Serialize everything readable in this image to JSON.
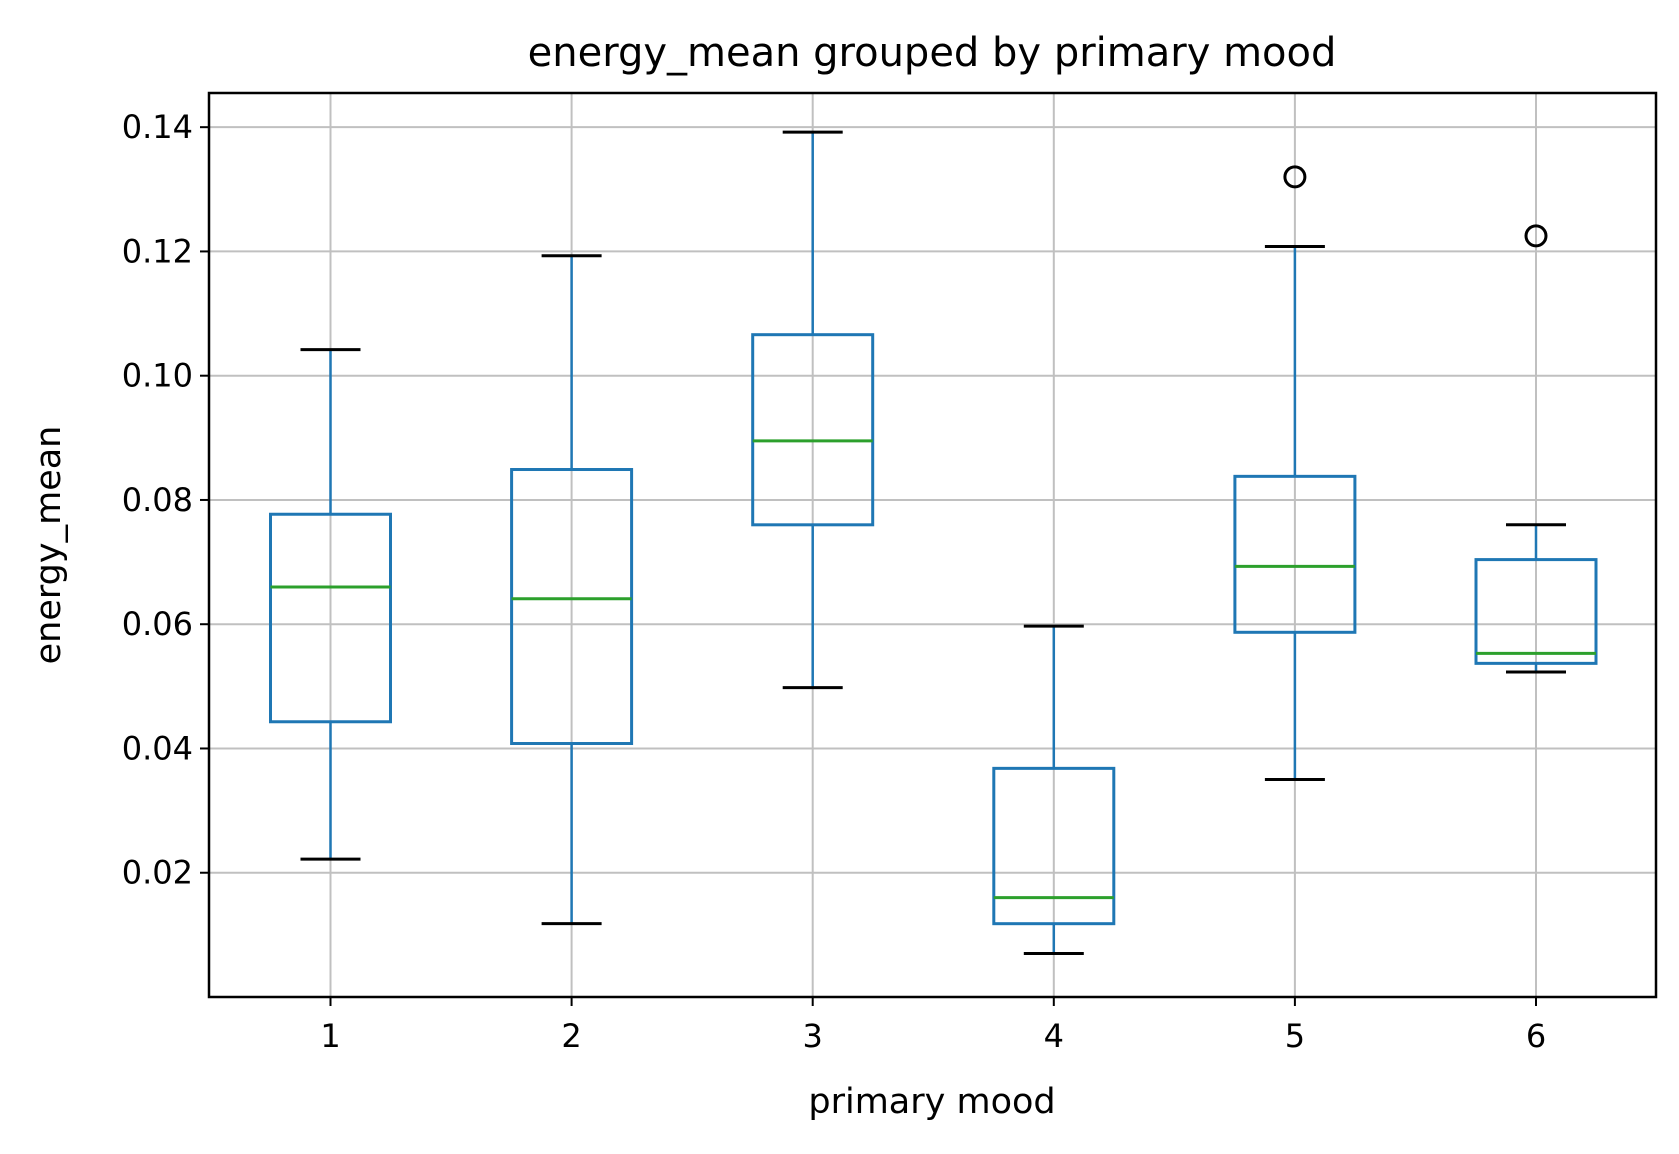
{
  "chart_data": {
    "type": "box",
    "title": "energy_mean grouped by primary mood",
    "xlabel": "primary mood",
    "ylabel": "energy_mean",
    "categories": [
      "1",
      "2",
      "3",
      "4",
      "5",
      "6"
    ],
    "ylim": [
      0.0,
      0.1455
    ],
    "y_ticks": [
      0.02,
      0.04,
      0.06,
      0.08,
      0.1,
      0.12,
      0.14
    ],
    "y_tick_labels": [
      "0.02",
      "0.04",
      "0.06",
      "0.08",
      "0.10",
      "0.12",
      "0.14"
    ],
    "grid": true,
    "boxes": [
      {
        "category": "1",
        "whisker_low": 0.0222,
        "q1": 0.0443,
        "median": 0.066,
        "q3": 0.0777,
        "whisker_high": 0.1042,
        "outliers": []
      },
      {
        "category": "2",
        "whisker_low": 0.0118,
        "q1": 0.0408,
        "median": 0.0641,
        "q3": 0.0849,
        "whisker_high": 0.1193,
        "outliers": []
      },
      {
        "category": "3",
        "whisker_low": 0.0498,
        "q1": 0.076,
        "median": 0.0895,
        "q3": 0.1066,
        "whisker_high": 0.1392,
        "outliers": []
      },
      {
        "category": "4",
        "whisker_low": 0.007,
        "q1": 0.0118,
        "median": 0.016,
        "q3": 0.0368,
        "whisker_high": 0.0597,
        "outliers": []
      },
      {
        "category": "5",
        "whisker_low": 0.035,
        "q1": 0.0587,
        "median": 0.0693,
        "q3": 0.0838,
        "whisker_high": 0.1208,
        "outliers": [
          0.132
        ]
      },
      {
        "category": "6",
        "whisker_low": 0.0523,
        "q1": 0.0537,
        "median": 0.0553,
        "q3": 0.0704,
        "whisker_high": 0.076,
        "outliers": [
          0.1225
        ]
      }
    ],
    "colors": {
      "box": "#1f77b4",
      "median": "#2ca02c",
      "cap": "#000000",
      "grid": "#c0c0c0",
      "outlier": "#000000"
    }
  }
}
